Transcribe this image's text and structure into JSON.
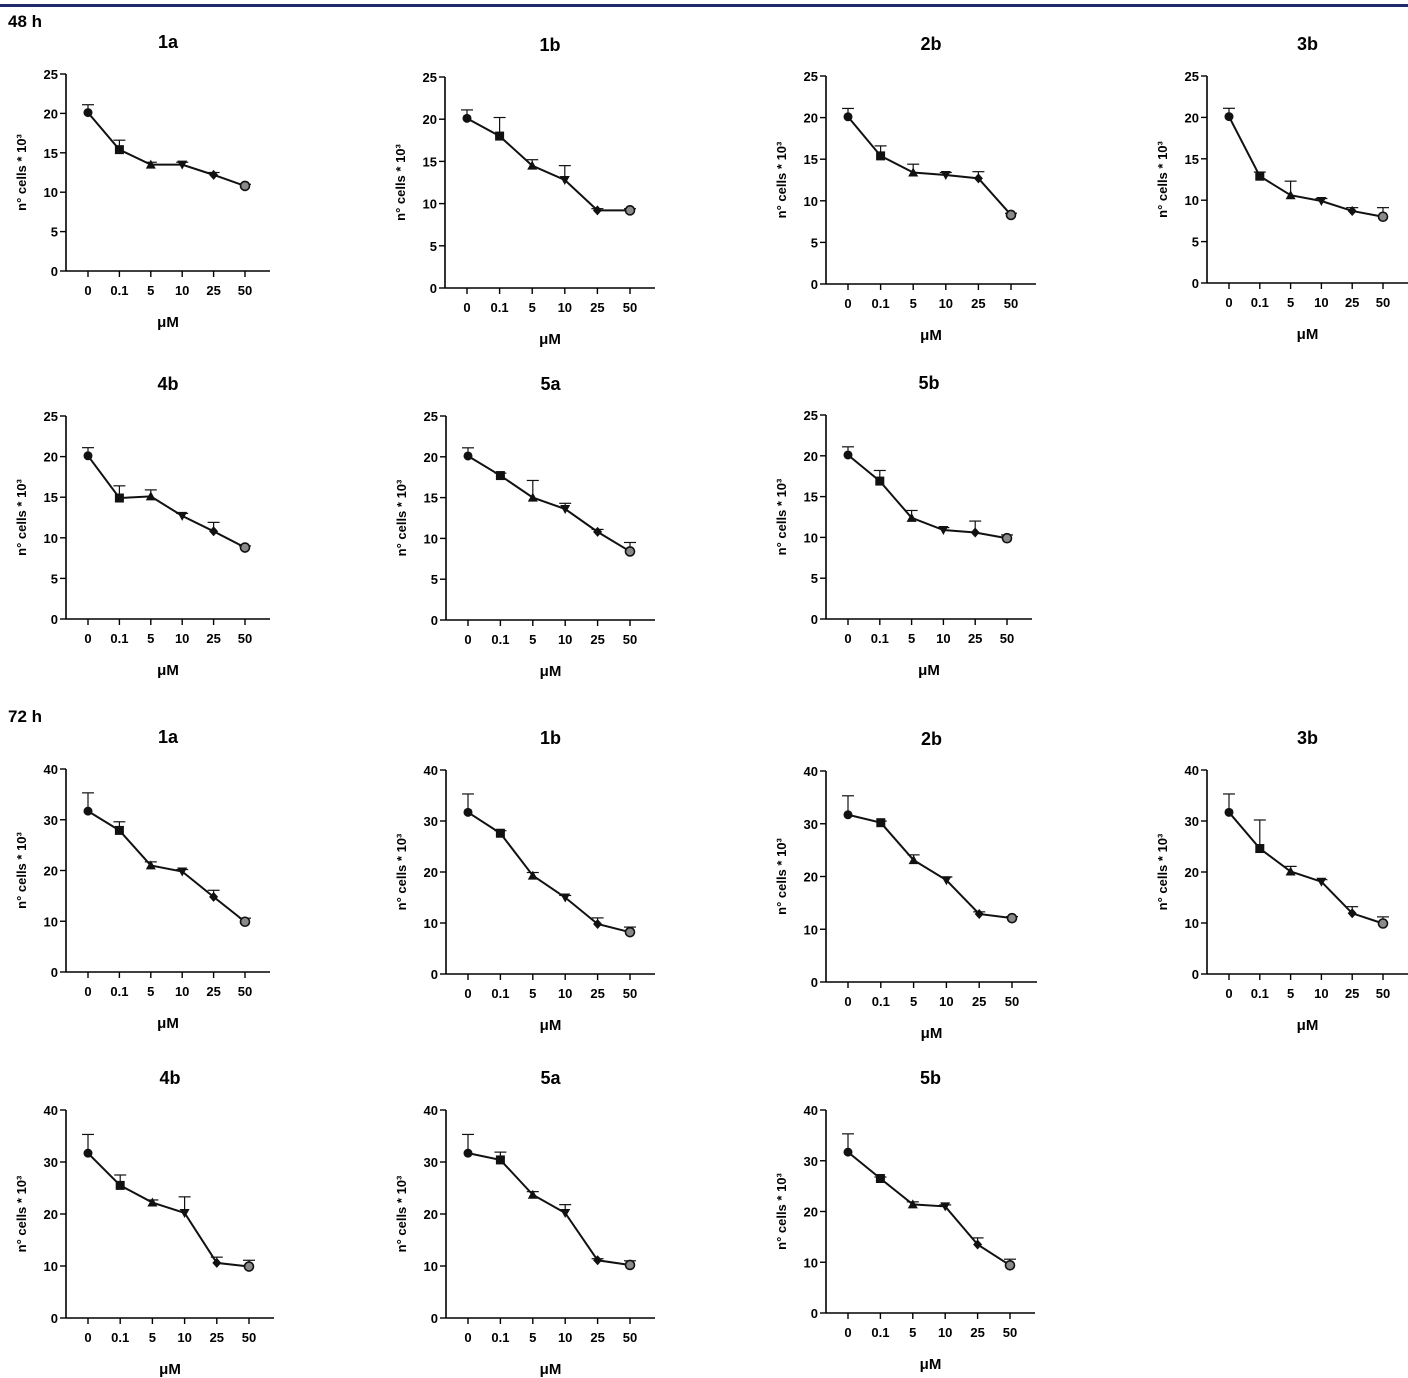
{
  "header": {
    "accent_color": "#1f2a6b"
  },
  "sections": [
    "48 h",
    "72 h"
  ],
  "chart_data": [
    {
      "type": "line",
      "section": "48 h",
      "title": "1a",
      "categories": [
        "0",
        "0.1",
        "5",
        "10",
        "25",
        "50"
      ],
      "values": [
        20.1,
        15.4,
        13.5,
        13.5,
        12.2,
        10.8
      ],
      "errors": [
        1.0,
        1.2,
        0.3,
        0.3,
        0.3,
        0.2
      ],
      "markers": [
        "circle",
        "square",
        "triangle",
        "triangle-down",
        "diamond",
        "circle-gray"
      ],
      "ylabel": "n° cells * 10³",
      "xlabel": "μM",
      "ylim": [
        0,
        25
      ],
      "yticks": [
        0,
        5,
        10,
        15,
        20,
        25
      ]
    },
    {
      "type": "line",
      "section": "48 h",
      "title": "1b",
      "categories": [
        "0",
        "0.1",
        "5",
        "10",
        "25",
        "50"
      ],
      "values": [
        20.1,
        18.0,
        14.5,
        12.8,
        9.2,
        9.2
      ],
      "errors": [
        1.0,
        2.2,
        0.7,
        1.7,
        0.2,
        0.2
      ],
      "markers": [
        "circle",
        "square",
        "triangle",
        "triangle-down",
        "diamond",
        "circle-gray"
      ],
      "ylabel": "n° cells * 10³",
      "xlabel": "μM",
      "ylim": [
        0,
        25
      ],
      "yticks": [
        0,
        5,
        10,
        15,
        20,
        25
      ]
    },
    {
      "type": "line",
      "section": "48 h",
      "title": "2b",
      "categories": [
        "0",
        "0.1",
        "5",
        "10",
        "25",
        "50"
      ],
      "values": [
        20.1,
        15.4,
        13.4,
        13.1,
        12.7,
        8.3
      ],
      "errors": [
        1.0,
        1.2,
        1.0,
        0.3,
        0.8,
        0.2
      ],
      "markers": [
        "circle",
        "square",
        "triangle",
        "triangle-down",
        "diamond",
        "circle-gray"
      ],
      "ylabel": "n° cells * 10³",
      "xlabel": "μM",
      "ylim": [
        0,
        25
      ],
      "yticks": [
        0,
        5,
        10,
        15,
        20,
        25
      ]
    },
    {
      "type": "line",
      "section": "48 h",
      "title": "3b",
      "categories": [
        "0",
        "0.1",
        "5",
        "10",
        "25",
        "50"
      ],
      "values": [
        20.1,
        12.9,
        10.6,
        9.9,
        8.7,
        8.0
      ],
      "errors": [
        1.0,
        0.5,
        1.7,
        0.3,
        0.4,
        1.1
      ],
      "markers": [
        "circle",
        "square",
        "triangle",
        "triangle-down",
        "diamond",
        "circle-gray"
      ],
      "ylabel": "n° cells * 10³",
      "xlabel": "μM",
      "ylim": [
        0,
        25
      ],
      "yticks": [
        0,
        5,
        10,
        15,
        20,
        25
      ]
    },
    {
      "type": "line",
      "section": "48 h",
      "title": "4b",
      "categories": [
        "0",
        "0.1",
        "5",
        "10",
        "25",
        "50"
      ],
      "values": [
        20.1,
        14.9,
        15.1,
        12.7,
        10.8,
        8.8
      ],
      "errors": [
        1.0,
        1.5,
        0.8,
        0.3,
        1.1,
        0.2
      ],
      "markers": [
        "circle",
        "square",
        "triangle",
        "triangle-down",
        "diamond",
        "circle-gray"
      ],
      "ylabel": "n° cells * 10³",
      "xlabel": "μM",
      "ylim": [
        0,
        25
      ],
      "yticks": [
        0,
        5,
        10,
        15,
        20,
        25
      ]
    },
    {
      "type": "line",
      "section": "48 h",
      "title": "5a",
      "categories": [
        "0",
        "0.1",
        "5",
        "10",
        "25",
        "50"
      ],
      "values": [
        20.1,
        17.7,
        15.0,
        13.6,
        10.8,
        8.4
      ],
      "errors": [
        1.0,
        0.3,
        2.1,
        0.7,
        0.3,
        1.1
      ],
      "markers": [
        "circle",
        "square",
        "triangle",
        "triangle-down",
        "diamond",
        "circle-gray"
      ],
      "ylabel": "n° cells * 10³",
      "xlabel": "μM",
      "ylim": [
        0,
        25
      ],
      "yticks": [
        0,
        5,
        10,
        15,
        20,
        25
      ]
    },
    {
      "type": "line",
      "section": "48 h",
      "title": "5b",
      "categories": [
        "0",
        "0.1",
        "5",
        "10",
        "25",
        "50"
      ],
      "values": [
        20.1,
        16.9,
        12.4,
        10.9,
        10.6,
        9.9
      ],
      "errors": [
        1.0,
        1.3,
        0.9,
        0.3,
        1.4,
        0.4
      ],
      "markers": [
        "circle",
        "square",
        "triangle",
        "triangle-down",
        "diamond",
        "circle-gray"
      ],
      "ylabel": "n° cells * 10³",
      "xlabel": "μM",
      "ylim": [
        0,
        25
      ],
      "yticks": [
        0,
        5,
        10,
        15,
        20,
        25
      ]
    },
    {
      "type": "line",
      "section": "72 h",
      "title": "1a",
      "categories": [
        "0",
        "0.1",
        "5",
        "10",
        "25",
        "50"
      ],
      "values": [
        31.7,
        27.9,
        21.0,
        19.8,
        14.8,
        9.9
      ],
      "errors": [
        3.6,
        1.7,
        0.7,
        0.4,
        1.3,
        0.7
      ],
      "markers": [
        "circle",
        "square",
        "triangle",
        "triangle-down",
        "diamond",
        "circle-gray"
      ],
      "ylabel": "n° cells * 10³",
      "xlabel": "μM",
      "ylim": [
        0,
        40
      ],
      "yticks": [
        0,
        10,
        20,
        30,
        40
      ]
    },
    {
      "type": "line",
      "section": "72 h",
      "title": "1b",
      "categories": [
        "0",
        "0.1",
        "5",
        "10",
        "25",
        "50"
      ],
      "values": [
        31.7,
        27.6,
        19.3,
        15.0,
        9.8,
        8.2
      ],
      "errors": [
        3.6,
        0.5,
        0.6,
        0.4,
        1.2,
        1.0
      ],
      "markers": [
        "circle",
        "square",
        "triangle",
        "triangle-down",
        "diamond",
        "circle-gray"
      ],
      "ylabel": "n° cells * 10³",
      "xlabel": "μM",
      "ylim": [
        0,
        40
      ],
      "yticks": [
        0,
        10,
        20,
        30,
        40
      ]
    },
    {
      "type": "line",
      "section": "72 h",
      "title": "2b",
      "categories": [
        "0",
        "0.1",
        "5",
        "10",
        "25",
        "50"
      ],
      "values": [
        31.7,
        30.2,
        23.1,
        19.3,
        12.9,
        12.1
      ],
      "errors": [
        3.6,
        0.3,
        1.0,
        0.6,
        0.4,
        0.3
      ],
      "markers": [
        "circle",
        "square",
        "triangle",
        "triangle-down",
        "diamond",
        "circle-gray"
      ],
      "ylabel": "n° cells * 10³",
      "xlabel": "μM",
      "ylim": [
        0,
        40
      ],
      "yticks": [
        0,
        10,
        20,
        30,
        40
      ]
    },
    {
      "type": "line",
      "section": "72 h",
      "title": "3b",
      "categories": [
        "0",
        "0.1",
        "5",
        "10",
        "25",
        "50"
      ],
      "values": [
        31.7,
        24.6,
        20.1,
        18.1,
        11.9,
        9.9
      ],
      "errors": [
        3.6,
        5.6,
        1.0,
        0.4,
        1.3,
        1.3
      ],
      "markers": [
        "circle",
        "square",
        "triangle",
        "triangle-down",
        "diamond",
        "circle-gray"
      ],
      "ylabel": "n° cells * 10³",
      "xlabel": "μM",
      "ylim": [
        0,
        40
      ],
      "yticks": [
        0,
        10,
        20,
        30,
        40
      ]
    },
    {
      "type": "line",
      "section": "72 h",
      "title": "4b",
      "categories": [
        "0",
        "0.1",
        "5",
        "10",
        "25",
        "50"
      ],
      "values": [
        31.7,
        25.5,
        22.2,
        20.2,
        10.6,
        9.9
      ],
      "errors": [
        3.6,
        2.0,
        0.5,
        3.1,
        1.1,
        1.2
      ],
      "markers": [
        "circle",
        "square",
        "triangle",
        "triangle-down",
        "diamond",
        "circle-gray"
      ],
      "ylabel": "n° cells * 10³",
      "xlabel": "μM",
      "ylim": [
        0,
        40
      ],
      "yticks": [
        0,
        10,
        20,
        30,
        40
      ]
    },
    {
      "type": "line",
      "section": "72 h",
      "title": "5a",
      "categories": [
        "0",
        "0.1",
        "5",
        "10",
        "25",
        "50"
      ],
      "values": [
        31.7,
        30.4,
        23.7,
        20.2,
        11.1,
        10.2
      ],
      "errors": [
        3.6,
        1.5,
        0.6,
        1.6,
        0.3,
        0.8
      ],
      "markers": [
        "circle",
        "square",
        "triangle",
        "triangle-down",
        "diamond",
        "circle-gray"
      ],
      "ylabel": "n° cells * 10³",
      "xlabel": "μM",
      "ylim": [
        0,
        40
      ],
      "yticks": [
        0,
        10,
        20,
        30,
        40
      ]
    },
    {
      "type": "line",
      "section": "72 h",
      "title": "5b",
      "categories": [
        "0",
        "0.1",
        "5",
        "10",
        "25",
        "50"
      ],
      "values": [
        31.7,
        26.5,
        21.4,
        21.0,
        13.5,
        9.4
      ],
      "errors": [
        3.6,
        0.3,
        0.5,
        0.3,
        1.3,
        1.2
      ],
      "markers": [
        "circle",
        "square",
        "triangle",
        "triangle-down",
        "diamond",
        "circle-gray"
      ],
      "ylabel": "n° cells * 10³",
      "xlabel": "μM",
      "ylim": [
        0,
        40
      ],
      "yticks": [
        0,
        10,
        20,
        30,
        40
      ]
    }
  ]
}
